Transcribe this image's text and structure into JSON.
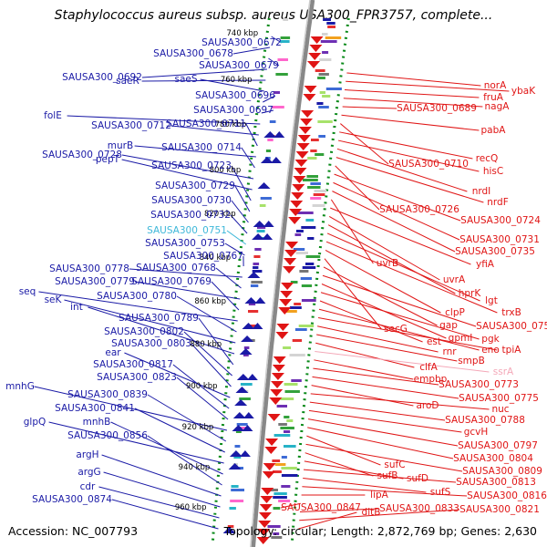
{
  "title": "Staphylococcus aureus subsp. aureus USA300_FPR3757, complete...",
  "accession": "Accession: NC_007793",
  "topology": "Topology: circular; Length: 2,872,769 bp; Genes: 2,630",
  "colors": {
    "minus_strand": "#1a1aa6",
    "plus_strand": "#e01515",
    "highlight_minus": "#3fb8d9",
    "highlight_plus": "#f4a8b8",
    "dots": "#0a8a1a",
    "axis": "#888888"
  },
  "kbp_ticks": [
    "740 kbp",
    "760 kbp",
    "780 kbp",
    "800 kbp",
    "820 kbp",
    "840 kbp",
    "860 kbp",
    "880 kbp",
    "900 kbp",
    "920 kbp",
    "940 kbp",
    "960 kbp"
  ],
  "left_labels": [
    "SAUSA300_0672",
    "SAUSA300_0678",
    "SAUSA300_0679",
    "SAUSA300_0692",
    "saeR",
    "saeS",
    "SAUSA300_0696",
    "SAUSA300_0697",
    "folE",
    "SAUSA300_0712",
    "SAUSA300_0711",
    "murB",
    "SAUSA300_0714",
    "SAUSA300_0728",
    "pepT",
    "SAUSA300_0723",
    "SAUSA300_0729",
    "SAUSA300_0730",
    "SAUSA300_0732",
    "SAUSA300_0751",
    "SAUSA300_0753",
    "SAUSA300_0767",
    "SAUSA300_0778",
    "SAUSA300_0768",
    "SAUSA300_0779",
    "SAUSA300_0769",
    "seq",
    "SAUSA300_0780",
    "seK",
    "int",
    "SAUSA300_0789",
    "SAUSA300_0802",
    "SAUSA300_0803",
    "ear",
    "SAUSA300_0817",
    "SAUSA300_0823",
    "mnhG",
    "SAUSA300_0839",
    "SAUSA300_0841",
    "glpQ",
    "mnhB",
    "SAUSA300_0856",
    "argH",
    "argG",
    "cdr",
    "SAUSA300_0874"
  ],
  "right_labels": [
    "norA",
    "ybaK",
    "fruA",
    "nagA",
    "SAUSA300_0689",
    "pabA",
    "SAUSA300_0710",
    "recQ",
    "hisC",
    "nrdI",
    "nrdF",
    "SAUSA300_0726",
    "SAUSA300_0724",
    "SAUSA300_0731",
    "SAUSA300_0735",
    "uvrB",
    "yfiA",
    "uvrA",
    "hprK",
    "lgt",
    "trxB",
    "clpP",
    "secG",
    "gap",
    "SAUSA300_0754",
    "gpmI",
    "pgk",
    "est",
    "eno",
    "tpiA",
    "rnr",
    "smpB",
    "clfA",
    "ssrA",
    "empbp",
    "SAUSA300_0773",
    "SAUSA300_0775",
    "aroD",
    "nuc",
    "SAUSA300_0788",
    "gcvH",
    "SAUSA300_0797",
    "SAUSA300_0804",
    "sufC",
    "SAUSA300_0809",
    "sufB",
    "sufD",
    "SAUSA300_0813",
    "sufS",
    "SAUSA300_0816",
    "lipA",
    "SAUSA300_0847",
    "SAUSA300_0833",
    "SAUSA300_0821",
    "dltB"
  ]
}
